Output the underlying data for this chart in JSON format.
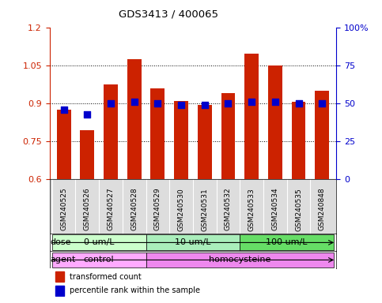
{
  "title": "GDS3413 / 400065",
  "samples": [
    "GSM240525",
    "GSM240526",
    "GSM240527",
    "GSM240528",
    "GSM240529",
    "GSM240530",
    "GSM240531",
    "GSM240532",
    "GSM240533",
    "GSM240534",
    "GSM240535",
    "GSM240848"
  ],
  "transformed_count": [
    0.875,
    0.795,
    0.975,
    1.075,
    0.96,
    0.91,
    0.895,
    0.94,
    1.095,
    1.05,
    0.905,
    0.95
  ],
  "percentile_rank": [
    46,
    43,
    50,
    51,
    50,
    49,
    49,
    50,
    51,
    51,
    50,
    50
  ],
  "ylim_left": [
    0.6,
    1.2
  ],
  "ylim_right": [
    0,
    100
  ],
  "yticks_left": [
    0.6,
    0.75,
    0.9,
    1.05,
    1.2
  ],
  "yticks_right": [
    0,
    25,
    50,
    75,
    100
  ],
  "bar_color": "#CC2200",
  "dot_color": "#0000CC",
  "dose_groups": [
    {
      "label": "0 um/L",
      "start": 0,
      "end": 3,
      "color": "#AAFFAA"
    },
    {
      "label": "10 um/L",
      "start": 4,
      "end": 7,
      "color": "#88EE88"
    },
    {
      "label": "100 um/L",
      "start": 8,
      "end": 11,
      "color": "#44DD44"
    }
  ],
  "agent_groups": [
    {
      "label": "control",
      "start": 0,
      "end": 3,
      "color": "#EE88EE"
    },
    {
      "label": "homocysteine",
      "start": 4,
      "end": 11,
      "color": "#DD66DD"
    }
  ],
  "dose_label": "dose",
  "agent_label": "agent",
  "legend_red": "transformed count",
  "legend_blue": "percentile rank within the sample",
  "grid_color": "#000000",
  "axis_bg": "#FFFFFF",
  "tick_label_color_left": "#CC2200",
  "tick_label_color_right": "#0000CC",
  "bar_width": 0.6,
  "dot_size": 40
}
